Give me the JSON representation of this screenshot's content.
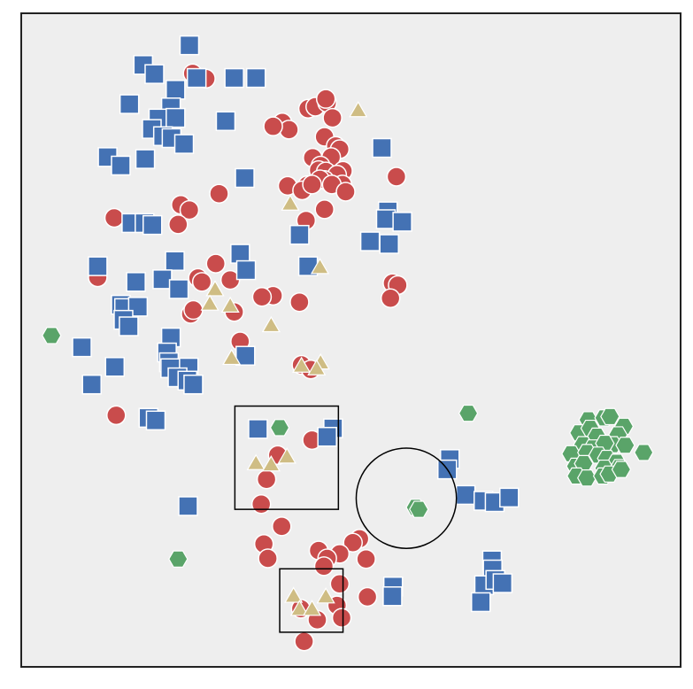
{
  "chart_data": {
    "type": "scatter",
    "title": "",
    "xlabel": "",
    "ylabel": "",
    "xlim": [
      0,
      100
    ],
    "ylim": [
      0,
      100
    ],
    "grid": false,
    "legend": "none",
    "background": "#eeeeee",
    "frame_color": "#222222",
    "series": [
      {
        "marker": "circle",
        "color": "#c94c4c",
        "points": [
          [
            28,
            90
          ],
          [
            26,
            90.8
          ],
          [
            39.6,
            83.3
          ],
          [
            40.6,
            82.2
          ],
          [
            38.2,
            82.7
          ],
          [
            43.5,
            85.4
          ],
          [
            44.6,
            85.7
          ],
          [
            46.4,
            86.3
          ],
          [
            46.2,
            86.9
          ],
          [
            47.2,
            84
          ],
          [
            46,
            81.1
          ],
          [
            47.7,
            79.7
          ],
          [
            48.3,
            79.2
          ],
          [
            47,
            78
          ],
          [
            44.2,
            77.9
          ],
          [
            45.4,
            76.7
          ],
          [
            45.1,
            76
          ],
          [
            46.2,
            75.8
          ],
          [
            48.8,
            75.9
          ],
          [
            47.9,
            75.3
          ],
          [
            46,
            74.5
          ],
          [
            45.3,
            74.6
          ],
          [
            43.4,
            73.7
          ],
          [
            40.4,
            73.6
          ],
          [
            48.7,
            73.8
          ],
          [
            42.6,
            72.9
          ],
          [
            44.1,
            73.8
          ],
          [
            47.1,
            73.8
          ],
          [
            49.2,
            72.7
          ],
          [
            56.9,
            75
          ],
          [
            30,
            72.4
          ],
          [
            24.2,
            70.7
          ],
          [
            25.5,
            69.9
          ],
          [
            46,
            70
          ],
          [
            14.1,
            68.7
          ],
          [
            23.8,
            67.7
          ],
          [
            43.2,
            68.3
          ],
          [
            11.6,
            59.6
          ],
          [
            29.5,
            61.7
          ],
          [
            26.8,
            59.5
          ],
          [
            27.4,
            58.9
          ],
          [
            31.7,
            59.2
          ],
          [
            38.2,
            56.8
          ],
          [
            36.5,
            56.6
          ],
          [
            56.3,
            58.7
          ],
          [
            57.1,
            58.4
          ],
          [
            56,
            56.4
          ],
          [
            42.2,
            55.8
          ],
          [
            25.7,
            54
          ],
          [
            32.3,
            54.3
          ],
          [
            26.1,
            54.6
          ],
          [
            33.2,
            49.8
          ],
          [
            42.5,
            46.2
          ],
          [
            43.9,
            45.5
          ],
          [
            14.4,
            38.5
          ],
          [
            44.1,
            34.7
          ],
          [
            38.9,
            32.4
          ],
          [
            37.2,
            28.7
          ],
          [
            36.4,
            24.9
          ],
          [
            39.5,
            21.5
          ],
          [
            36.8,
            18.8
          ],
          [
            51.3,
            19.6
          ],
          [
            50.3,
            19
          ],
          [
            45.1,
            17.8
          ],
          [
            48.3,
            17.3
          ],
          [
            46.4,
            16.6
          ],
          [
            37.4,
            16.6
          ],
          [
            52.3,
            16.5
          ],
          [
            45.9,
            15.4
          ],
          [
            48.3,
            12.7
          ],
          [
            52.5,
            10.7
          ],
          [
            47.9,
            9.4
          ],
          [
            48.6,
            7.5
          ],
          [
            42.4,
            8.9
          ],
          [
            44.9,
            7.2
          ],
          [
            42.9,
            3.9
          ]
        ]
      },
      {
        "marker": "square",
        "color": "#4472b4",
        "points": [
          [
            25.5,
            95.1
          ],
          [
            18.5,
            92.1
          ],
          [
            20.2,
            90.7
          ],
          [
            26.6,
            90.1
          ],
          [
            32.3,
            90.1
          ],
          [
            35.6,
            90.1
          ],
          [
            23.4,
            88.3
          ],
          [
            16.4,
            86.1
          ],
          [
            22.7,
            85.6
          ],
          [
            20.8,
            83.9
          ],
          [
            23.4,
            84
          ],
          [
            31,
            83.5
          ],
          [
            19.8,
            82.3
          ],
          [
            21.5,
            81.2
          ],
          [
            22.8,
            80.9
          ],
          [
            24.7,
            80
          ],
          [
            54.7,
            79.4
          ],
          [
            13.1,
            78
          ],
          [
            18.8,
            77.7
          ],
          [
            15.1,
            76.7
          ],
          [
            33.9,
            74.8
          ],
          [
            55.6,
            69.7
          ],
          [
            55.3,
            68.5
          ],
          [
            57.8,
            68.1
          ],
          [
            16.7,
            67.9
          ],
          [
            18.7,
            67.9
          ],
          [
            19.9,
            67.6
          ],
          [
            42.2,
            66.1
          ],
          [
            52.9,
            65.1
          ],
          [
            55.8,
            64.7
          ],
          [
            33.2,
            63.2
          ],
          [
            23.3,
            62.1
          ],
          [
            43.5,
            61.3
          ],
          [
            11.6,
            61.3
          ],
          [
            34.1,
            60.7
          ],
          [
            21.4,
            59.3
          ],
          [
            17.4,
            58.9
          ],
          [
            23.9,
            57.8
          ],
          [
            15.1,
            55.4
          ],
          [
            15.6,
            54.9
          ],
          [
            17.7,
            55.1
          ],
          [
            15.5,
            53.1
          ],
          [
            16.3,
            52.1
          ],
          [
            22.7,
            50.4
          ],
          [
            9.2,
            48.9
          ],
          [
            22.1,
            48.1
          ],
          [
            34,
            47.6
          ],
          [
            22.4,
            46.6
          ],
          [
            14.2,
            45.9
          ],
          [
            25.4,
            45.8
          ],
          [
            22.6,
            45.7
          ],
          [
            23.7,
            44.3
          ],
          [
            25.2,
            43.8
          ],
          [
            10.7,
            43.2
          ],
          [
            26.1,
            43.2
          ],
          [
            19.3,
            38.1
          ],
          [
            20.4,
            37.7
          ],
          [
            35.9,
            36.4
          ],
          [
            47.3,
            36.5
          ],
          [
            46.4,
            35.2
          ],
          [
            65,
            31.8
          ],
          [
            64.6,
            30.2
          ],
          [
            67.4,
            26.3
          ],
          [
            70.1,
            25.4
          ],
          [
            71.8,
            25.2
          ],
          [
            74,
            25.9
          ],
          [
            25.3,
            24.6
          ],
          [
            71.4,
            16.3
          ],
          [
            71.5,
            14.9
          ],
          [
            70.2,
            12.5
          ],
          [
            71.9,
            13.3
          ],
          [
            73,
            12.8
          ],
          [
            56.4,
            12.3
          ],
          [
            56.3,
            10.8
          ],
          [
            69.7,
            9.9
          ]
        ]
      },
      {
        "marker": "triangle",
        "color": "#cfbd84",
        "points": [
          [
            51.1,
            85.2
          ],
          [
            40.8,
            70.9
          ],
          [
            45.3,
            61.2
          ],
          [
            29.4,
            57.8
          ],
          [
            28.6,
            55.6
          ],
          [
            31.7,
            55.3
          ],
          [
            37.9,
            52.3
          ],
          [
            31.9,
            47.3
          ],
          [
            42.5,
            46.1
          ],
          [
            45.4,
            46.6
          ],
          [
            44.8,
            45.7
          ],
          [
            40.3,
            32.2
          ],
          [
            35.6,
            31.2
          ],
          [
            37.9,
            31
          ],
          [
            41.3,
            10.9
          ],
          [
            46.2,
            10.8
          ],
          [
            42.2,
            8.9
          ],
          [
            44.1,
            8.9
          ]
        ]
      },
      {
        "marker": "hexagon",
        "color": "#5aa469",
        "points": [
          [
            4.6,
            50.7
          ],
          [
            39.2,
            36.6
          ],
          [
            67.8,
            38.8
          ],
          [
            59.8,
            24.4
          ],
          [
            60.3,
            24.1
          ],
          [
            23.8,
            16.5
          ],
          [
            86,
            37.8
          ],
          [
            88.4,
            38.1
          ],
          [
            89.3,
            38.3
          ],
          [
            91.4,
            36.8
          ],
          [
            84.6,
            35.8
          ],
          [
            86.3,
            36.5
          ],
          [
            87.3,
            35.3
          ],
          [
            90.5,
            35.5
          ],
          [
            89.7,
            34
          ],
          [
            91.6,
            33.9
          ],
          [
            94.4,
            32.8
          ],
          [
            85.2,
            34
          ],
          [
            86.7,
            33.5
          ],
          [
            88.5,
            34.2
          ],
          [
            83.4,
            32.6
          ],
          [
            85.8,
            32.8
          ],
          [
            87.5,
            32.4
          ],
          [
            88.8,
            31.9
          ],
          [
            90.3,
            31.3
          ],
          [
            84.1,
            30.7
          ],
          [
            85.3,
            31.1
          ],
          [
            88.4,
            30.4
          ],
          [
            90.7,
            30.5
          ],
          [
            84.2,
            29.2
          ],
          [
            85.8,
            28.9
          ],
          [
            88.2,
            29.2
          ],
          [
            89.2,
            29.5
          ],
          [
            91,
            30.2
          ]
        ]
      }
    ],
    "annotations": [
      {
        "shape": "rect",
        "x0": 32.4,
        "x1": 48.1,
        "y0": 24.1,
        "y1": 39.9
      },
      {
        "shape": "circle",
        "cx": 58.4,
        "cy": 25.8,
        "r": 7.6
      },
      {
        "shape": "rect",
        "x0": 39.2,
        "x1": 48.8,
        "y0": 5.3,
        "y1": 15.0
      }
    ]
  }
}
